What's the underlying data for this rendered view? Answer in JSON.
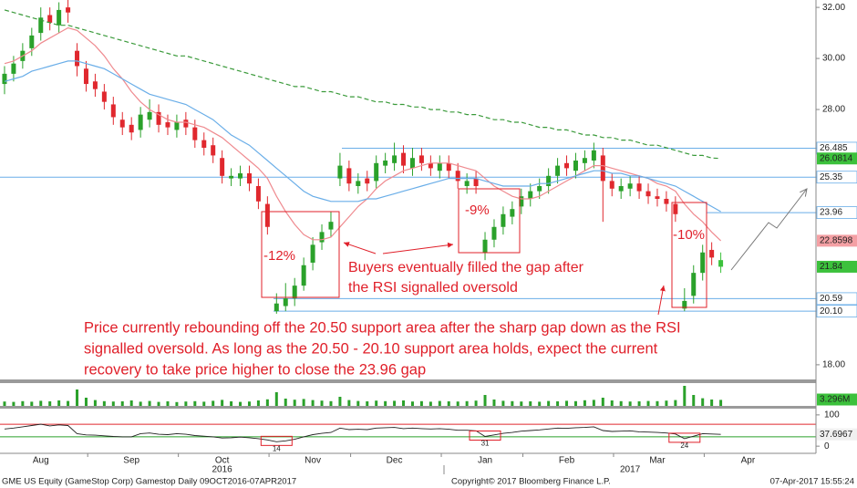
{
  "chart_data": {
    "type": "candlestick",
    "categories": [
      null,
      null,
      null,
      null,
      "Aug",
      null,
      null,
      null,
      null,
      null,
      null,
      null,
      null,
      null,
      "Sep",
      null,
      null,
      null,
      null,
      null,
      null,
      null,
      null,
      null,
      "Oct",
      null,
      null,
      null,
      null,
      null,
      null,
      null,
      null,
      null,
      "Nov",
      null,
      null,
      null,
      null,
      null,
      null,
      null,
      null,
      "Dec",
      null,
      null,
      null,
      null,
      null,
      null,
      null,
      null,
      null,
      "Jan",
      null,
      null,
      null,
      null,
      null,
      null,
      null,
      null,
      "Feb",
      null,
      null,
      null,
      null,
      null,
      null,
      null,
      null,
      null,
      "Mar",
      null,
      null,
      null,
      null,
      null,
      null,
      null,
      null,
      null,
      "Apr",
      null,
      null,
      null,
      null,
      null,
      null,
      null
    ],
    "years": [
      null,
      null,
      null,
      null,
      null,
      null,
      null,
      null,
      null,
      null,
      null,
      null,
      null,
      null,
      null,
      null,
      null,
      null,
      null,
      null,
      null,
      null,
      null,
      null,
      "2016",
      null,
      null,
      null,
      null,
      null,
      null,
      null,
      null,
      null,
      null,
      null,
      null,
      null,
      null,
      null,
      null,
      null,
      null,
      null,
      null,
      null,
      null,
      null,
      null,
      null,
      null,
      null,
      null,
      null,
      null,
      null,
      null,
      null,
      null,
      null,
      null,
      null,
      null,
      null,
      null,
      null,
      null,
      null,
      null,
      "2017",
      null,
      null,
      null,
      null,
      null,
      null,
      null,
      null,
      null,
      null,
      null,
      null,
      null,
      null,
      null,
      null,
      null,
      null,
      null,
      null
    ],
    "open": [
      29.0,
      29.4,
      29.9,
      30.4,
      31.0,
      31.7,
      31.3,
      32.0,
      30.3,
      29.6,
      29.1,
      28.7,
      28.2,
      27.6,
      27.4,
      27.2,
      27.6,
      27.9,
      27.5,
      27.2,
      27.6,
      27.3,
      26.8,
      26.6,
      26.1,
      25.3,
      25.3,
      25.5,
      25.0,
      24.3,
      20.1,
      20.3,
      20.6,
      21.1,
      22.0,
      22.8,
      23.3,
      25.3,
      25.7,
      25.0,
      25.3,
      25.2,
      25.8,
      25.9,
      26.3,
      25.7,
      26.2,
      25.9,
      25.6,
      25.9,
      25.6,
      25.0,
      25.3,
      22.4,
      22.9,
      23.4,
      23.8,
      24.2,
      24.5,
      24.8,
      25.0,
      25.4,
      25.9,
      25.6,
      25.9,
      26.0,
      26.2,
      25.2,
      24.8,
      24.9,
      25.1,
      24.8,
      24.6,
      24.5,
      24.3,
      20.2,
      20.7,
      21.6,
      22.5,
      22.1,
      null,
      null,
      null,
      null,
      null,
      null,
      null,
      null,
      null,
      null
    ],
    "high": [
      29.7,
      30.1,
      30.6,
      31.2,
      32.0,
      32.0,
      32.2,
      32.3,
      30.6,
      29.9,
      29.4,
      29.0,
      28.5,
      27.9,
      27.7,
      28.1,
      28.4,
      28.2,
      27.8,
      27.8,
      27.9,
      27.6,
      27.1,
      26.9,
      26.4,
      25.7,
      25.8,
      25.8,
      25.3,
      24.6,
      20.8,
      21.2,
      21.4,
      22.2,
      23.0,
      23.5,
      24.0,
      26.3,
      26.0,
      25.5,
      25.6,
      26.2,
      26.3,
      26.7,
      26.6,
      26.5,
      26.5,
      26.2,
      26.2,
      26.2,
      25.9,
      25.5,
      25.6,
      23.2,
      23.7,
      24.2,
      24.4,
      24.9,
      25.1,
      25.3,
      25.7,
      26.1,
      26.2,
      26.3,
      26.4,
      26.7,
      26.5,
      25.5,
      25.3,
      25.4,
      25.4,
      25.1,
      24.9,
      24.8,
      24.6,
      21.0,
      21.9,
      22.7,
      22.8,
      22.4,
      null,
      null,
      null,
      null,
      null,
      null,
      null,
      null,
      null,
      null
    ],
    "low": [
      28.6,
      29.1,
      29.6,
      30.1,
      30.7,
      31.1,
      31.0,
      31.4,
      29.3,
      28.7,
      28.5,
      28.0,
      27.4,
      27.0,
      26.8,
      26.9,
      27.3,
      27.1,
      27.0,
      26.9,
      27.0,
      26.5,
      26.2,
      25.9,
      25.1,
      25.0,
      25.0,
      24.8,
      24.1,
      23.1,
      20.0,
      20.1,
      20.3,
      20.9,
      21.7,
      22.5,
      23.0,
      25.0,
      24.8,
      24.7,
      24.8,
      24.9,
      25.5,
      25.6,
      25.5,
      25.4,
      25.6,
      25.4,
      25.3,
      25.3,
      24.9,
      24.7,
      24.7,
      22.1,
      22.6,
      23.1,
      23.5,
      23.9,
      24.2,
      24.5,
      24.7,
      25.1,
      25.4,
      25.3,
      25.6,
      25.7,
      23.6,
      24.6,
      24.5,
      24.6,
      24.5,
      24.3,
      24.2,
      24.0,
      23.6,
      20.1,
      20.4,
      21.3,
      21.9,
      21.6,
      null,
      null,
      null,
      null,
      null,
      null,
      null,
      null,
      null,
      null
    ],
    "close": [
      29.4,
      29.8,
      30.3,
      30.9,
      31.6,
      31.4,
      31.9,
      31.8,
      29.7,
      29.0,
      28.8,
      28.3,
      27.7,
      27.3,
      27.1,
      27.8,
      27.9,
      27.4,
      27.3,
      27.5,
      27.3,
      26.8,
      26.5,
      26.2,
      25.4,
      25.4,
      25.5,
      25.1,
      24.4,
      23.4,
      20.4,
      20.6,
      21.1,
      21.9,
      22.7,
      23.2,
      23.6,
      25.8,
      25.1,
      25.2,
      25.1,
      25.9,
      26.0,
      26.2,
      25.8,
      26.1,
      25.9,
      25.7,
      25.9,
      25.6,
      25.2,
      25.2,
      25.0,
      22.9,
      23.4,
      23.9,
      24.1,
      24.6,
      24.8,
      25.0,
      25.4,
      25.8,
      25.7,
      26.0,
      26.1,
      26.4,
      25.2,
      24.9,
      25.0,
      25.1,
      24.8,
      24.6,
      24.5,
      24.3,
      23.9,
      20.5,
      21.6,
      22.4,
      22.2,
      21.84,
      null,
      null,
      null,
      null,
      null,
      null,
      null,
      null,
      null,
      null
    ],
    "up_color": "#2aa12a",
    "down_color": "#e0282e",
    "last_color": "#3cc13c",
    "overlays": [
      {
        "color": "#ef8a8f",
        "badge_color": "#f4a0a4",
        "values": [
          29.8,
          29.9,
          30.1,
          30.3,
          30.6,
          30.8,
          31.0,
          31.2,
          31.1,
          30.8,
          30.5,
          30.1,
          29.6,
          29.2,
          28.7,
          28.3,
          28.0,
          27.8,
          27.6,
          27.5,
          27.5,
          27.4,
          27.3,
          27.1,
          26.9,
          26.6,
          26.3,
          26.0,
          25.7,
          25.3,
          24.6,
          24.0,
          23.5,
          23.1,
          22.9,
          22.9,
          23.0,
          23.4,
          23.8,
          24.2,
          24.5,
          24.9,
          25.2,
          25.4,
          25.6,
          25.7,
          25.8,
          25.9,
          25.9,
          25.9,
          25.8,
          25.7,
          25.6,
          25.3,
          25.0,
          24.8,
          24.6,
          24.5,
          24.5,
          24.6,
          24.8,
          25.0,
          25.2,
          25.4,
          25.6,
          25.8,
          25.8,
          25.7,
          25.6,
          25.5,
          25.4,
          25.3,
          25.1,
          25.0,
          24.8,
          24.3,
          23.9,
          23.6,
          23.2,
          22.8598,
          null,
          null,
          null,
          null,
          null,
          null,
          null,
          null,
          null,
          null
        ]
      },
      {
        "color": "#6aaee8",
        "values": [
          29.1,
          29.2,
          29.3,
          29.5,
          29.6,
          29.7,
          29.8,
          29.9,
          29.9,
          29.8,
          29.7,
          29.6,
          29.4,
          29.2,
          29.0,
          28.8,
          28.6,
          28.5,
          28.4,
          28.3,
          28.2,
          28.0,
          27.8,
          27.6,
          27.3,
          27.0,
          26.8,
          26.6,
          26.3,
          26.0,
          25.7,
          25.4,
          25.1,
          24.8,
          24.6,
          24.5,
          24.4,
          24.4,
          24.4,
          24.4,
          24.5,
          24.5,
          24.6,
          24.7,
          24.8,
          24.9,
          25.0,
          25.1,
          25.2,
          25.3,
          25.3,
          25.3,
          25.3,
          25.2,
          25.1,
          25.0,
          25.0,
          25.0,
          25.0,
          25.1,
          25.1,
          25.2,
          25.3,
          25.4,
          25.5,
          25.6,
          25.6,
          25.5,
          25.5,
          25.4,
          25.4,
          25.3,
          25.2,
          25.1,
          25.0,
          24.8,
          24.6,
          24.4,
          24.2,
          24.0,
          null,
          null,
          null,
          null,
          null,
          null,
          null,
          null,
          null,
          null
        ]
      },
      {
        "color": "#3a9a3a",
        "badge_color": "#3cc13c",
        "dashed": true,
        "values": [
          31.9,
          31.8,
          31.7,
          31.6,
          31.5,
          31.4,
          31.3,
          31.3,
          31.2,
          31.1,
          31.0,
          30.9,
          30.8,
          30.7,
          30.6,
          30.5,
          30.4,
          30.3,
          30.2,
          30.1,
          30.1,
          30.0,
          29.9,
          29.8,
          29.7,
          29.6,
          29.5,
          29.4,
          29.3,
          29.2,
          29.1,
          29.0,
          28.9,
          28.9,
          28.8,
          28.7,
          28.7,
          28.6,
          28.5,
          28.5,
          28.4,
          28.3,
          28.3,
          28.2,
          28.2,
          28.1,
          28.1,
          28.0,
          28.0,
          27.9,
          27.9,
          27.8,
          27.8,
          27.7,
          27.6,
          27.6,
          27.5,
          27.5,
          27.4,
          27.3,
          27.3,
          27.2,
          27.2,
          27.1,
          27.0,
          27.0,
          26.9,
          26.9,
          26.8,
          26.8,
          26.7,
          26.6,
          26.6,
          26.5,
          26.4,
          26.3,
          26.2,
          26.2,
          26.1,
          26.0814,
          null,
          null,
          null,
          null,
          null,
          null,
          null,
          null,
          null,
          null
        ]
      }
    ],
    "ylim": [
      17.46,
      32.29
    ],
    "yticks": [
      {
        "value": 32,
        "label": "32.00"
      },
      {
        "value": 30,
        "label": "30.00"
      },
      {
        "value": 28,
        "label": "28.00"
      },
      {
        "value": 18,
        "label": "18.00"
      }
    ],
    "levels": [
      {
        "value": 26.485,
        "color": "#6aaee8"
      },
      {
        "value": 25.35,
        "color": "#6aaee8"
      },
      {
        "value": 23.96,
        "color": "#6aaee8"
      },
      {
        "value": 20.59,
        "color": "#6aaee8"
      },
      {
        "value": 20.1,
        "label": "20.10",
        "color": "#6aaee8"
      }
    ],
    "volume": {
      "color": "#2aa12a",
      "ylim": [
        0,
        12
      ],
      "values": [
        2.4,
        2.2,
        2.6,
        2.3,
        2.8,
        2.5,
        3.0,
        2.7,
        9.0,
        4.5,
        3.2,
        2.6,
        2.4,
        2.5,
        3.0,
        2.3,
        2.7,
        2.2,
        2.5,
        2.1,
        2.4,
        2.6,
        2.3,
        2.8,
        3.3,
        2.5,
        2.2,
        2.4,
        3.0,
        3.6,
        7.5,
        4.0,
        3.4,
        3.8,
        3.2,
        2.9,
        2.6,
        5.0,
        3.2,
        2.7,
        2.5,
        2.9,
        2.6,
        2.8,
        3.0,
        2.4,
        2.6,
        2.3,
        2.7,
        2.5,
        2.4,
        2.6,
        2.9,
        6.0,
        3.5,
        2.8,
        2.6,
        2.4,
        2.5,
        2.3,
        2.7,
        2.5,
        2.8,
        2.6,
        3.1,
        3.3,
        4.5,
        3.0,
        2.6,
        2.4,
        2.5,
        2.7,
        2.6,
        2.9,
        3.2,
        11.0,
        6.0,
        4.2,
        3.5,
        3.296,
        null,
        null,
        null,
        null,
        null,
        null,
        null,
        null,
        null,
        null
      ],
      "value_labels": [
        null,
        null,
        null,
        null,
        null,
        null,
        null,
        null,
        null,
        null,
        null,
        null,
        null,
        null,
        null,
        null,
        null,
        null,
        null,
        null,
        null,
        null,
        null,
        null,
        null,
        null,
        null,
        null,
        null,
        null,
        null,
        null,
        null,
        null,
        null,
        null,
        null,
        null,
        null,
        null,
        null,
        null,
        null,
        null,
        null,
        null,
        null,
        null,
        null,
        null,
        null,
        null,
        null,
        null,
        null,
        null,
        null,
        null,
        null,
        null,
        null,
        null,
        null,
        null,
        null,
        null,
        null,
        null,
        null,
        null,
        null,
        null,
        null,
        null,
        null,
        null,
        null,
        null,
        null,
        "3.296M",
        null,
        null,
        null,
        null,
        null,
        null,
        null,
        null,
        null,
        null
      ]
    },
    "rsi": {
      "color": "#222222",
      "ylim": [
        -20,
        120
      ],
      "yticks": [
        100,
        0
      ],
      "levels": [
        {
          "value": 70,
          "color": "#e0282e"
        },
        {
          "value": 30,
          "color": "#2aa12a"
        }
      ],
      "callouts": [
        30,
        53,
        75
      ],
      "values": [
        55,
        58,
        62,
        66,
        70,
        65,
        68,
        66,
        40,
        36,
        35,
        33,
        31,
        30,
        30,
        40,
        42,
        38,
        37,
        40,
        38,
        34,
        32,
        30,
        26,
        27,
        29,
        27,
        24,
        20,
        14,
        17,
        22,
        30,
        37,
        41,
        44,
        58,
        53,
        54,
        53,
        58,
        59,
        60,
        56,
        58,
        56,
        55,
        56,
        54,
        51,
        51,
        49,
        31,
        36,
        41,
        44,
        48,
        50,
        52,
        55,
        58,
        57,
        59,
        60,
        62,
        50,
        47,
        48,
        49,
        46,
        45,
        44,
        42,
        39,
        24,
        32,
        40,
        39,
        37.6967,
        null,
        null,
        null,
        null,
        null,
        null,
        null,
        null,
        null,
        null
      ]
    },
    "annotations": {
      "drops": [
        "-12%",
        "-9%",
        "-10%"
      ],
      "note": [
        "Buyers eventually filled the gap after",
        "the RSI signalled oversold"
      ],
      "summary": [
        "Price currently rebounding off the 20.50 support area after the sharp gap down as the RSI",
        "signalled oversold. As long as the 20.50 - 20.10 support area holds, expect the current",
        "recovery to take price higher to close the 23.96 gap"
      ]
    },
    "footer": {
      "left": "GME US Equity (GameStop Corp) Gamestop  Daily 09OCT2016-07APR2017",
      "center": "Copyright© 2017 Bloomberg Finance L.P.",
      "right": "07-Apr-2017  15:55:24"
    }
  }
}
